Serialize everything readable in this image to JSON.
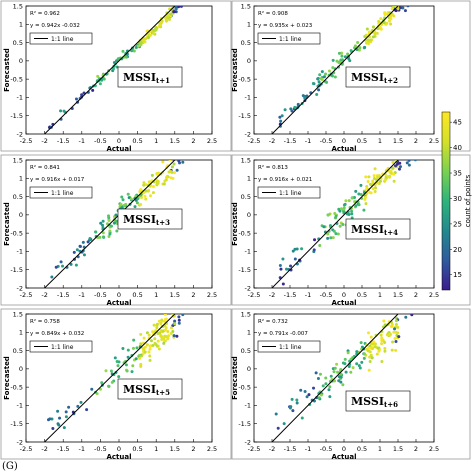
{
  "figure_label": "(G)",
  "colorbar": {
    "label": "count of points",
    "ticks": [
      15,
      20,
      25,
      30,
      35,
      40,
      45
    ],
    "range": [
      12,
      47
    ],
    "colors": [
      "#3b1c8c",
      "#2f5b9e",
      "#22898d",
      "#2fb47c",
      "#7ad151",
      "#d4e02a",
      "#fde725"
    ]
  },
  "chart_data": [
    {
      "type": "scatter",
      "panel": "t+1",
      "xlabel": "Actual",
      "ylabel": "Forecasted",
      "xlim": [
        -2.5,
        2.5
      ],
      "ylim": [
        -2,
        1.5
      ],
      "xticks": [
        -2.5,
        -2,
        -1.5,
        -1,
        -0.5,
        0,
        0.5,
        1,
        1.5,
        2,
        2.5
      ],
      "yticks": [
        -2,
        -1.5,
        -1,
        -0.5,
        0,
        0.5,
        1,
        1.5
      ],
      "r2_text": "R² = 0.962",
      "equation": "y = 0.942x  -0.032",
      "legend": "1:1 line",
      "tag_main": "MSSI",
      "tag_sub": "t+1",
      "slope": 0.942,
      "intercept": -0.032,
      "spread": 0.1
    },
    {
      "type": "scatter",
      "panel": "t+2",
      "xlabel": "Actual",
      "ylabel": "Forecasted",
      "xlim": [
        -2.5,
        2.5
      ],
      "ylim": [
        -2,
        1.5
      ],
      "xticks": [
        -2.5,
        -2,
        -1.5,
        -1,
        -0.5,
        0,
        0.5,
        1,
        1.5,
        2,
        2.5
      ],
      "yticks": [
        -2,
        -1.5,
        -1,
        -0.5,
        0,
        0.5,
        1,
        1.5
      ],
      "r2_text": "R² = 0.908",
      "equation": "y = 0.935x + 0.023",
      "legend": "1:1 line",
      "tag_main": "MSSI",
      "tag_sub": "t+2",
      "slope": 0.935,
      "intercept": 0.023,
      "spread": 0.16
    },
    {
      "type": "scatter",
      "panel": "t+3",
      "xlabel": "Actual",
      "ylabel": "Forecasted",
      "xlim": [
        -2.5,
        2.5
      ],
      "ylim": [
        -2,
        1.5
      ],
      "xticks": [
        -2.5,
        -2,
        -1.5,
        -1,
        -0.5,
        0,
        0.5,
        1,
        1.5,
        2,
        2.5
      ],
      "yticks": [
        -2,
        -1.5,
        -1,
        -0.5,
        0,
        0.5,
        1,
        1.5
      ],
      "r2_text": "R² = 0.841",
      "equation": "y = 0.916x + 0.017",
      "legend": "1:1 line",
      "tag_main": "MSSI",
      "tag_sub": "t+3",
      "slope": 0.916,
      "intercept": 0.017,
      "spread": 0.22
    },
    {
      "type": "scatter",
      "panel": "t+4",
      "xlabel": "Actual",
      "ylabel": "Forecasted",
      "xlim": [
        -2.5,
        2.5
      ],
      "ylim": [
        -2,
        1.5
      ],
      "xticks": [
        -2.5,
        -2,
        -1.5,
        -1,
        -0.5,
        0,
        0.5,
        1,
        1.5,
        2,
        2.5
      ],
      "yticks": [
        -2,
        -1.5,
        -1,
        -0.5,
        0,
        0.5,
        1,
        1.5
      ],
      "r2_text": "R² = 0.813",
      "equation": "y = 0.916x + 0.021",
      "legend": "1:1 line",
      "tag_main": "MSSI",
      "tag_sub": "t+4",
      "slope": 0.916,
      "intercept": 0.021,
      "spread": 0.25
    },
    {
      "type": "scatter",
      "panel": "t+5",
      "xlabel": "Actual",
      "ylabel": "Forecasted",
      "xlim": [
        -2.5,
        2.5
      ],
      "ylim": [
        -2,
        1.5
      ],
      "xticks": [
        -2.5,
        -2,
        -1.5,
        -1,
        -0.5,
        0,
        0.5,
        1,
        1.5,
        2,
        2.5
      ],
      "yticks": [
        -2,
        -1.5,
        -1,
        -0.5,
        0,
        0.5,
        1,
        1.5
      ],
      "r2_text": "R² = 0.758",
      "equation": "y = 0.849x + 0.032",
      "legend": "1:1 line",
      "tag_main": "MSSI",
      "tag_sub": "t+5",
      "slope": 0.849,
      "intercept": 0.032,
      "spread": 0.3
    },
    {
      "type": "scatter",
      "panel": "t+6",
      "xlabel": "Actual",
      "ylabel": "Forecasted",
      "xlim": [
        -2.5,
        2.5
      ],
      "ylim": [
        -2,
        1.5
      ],
      "xticks": [
        -2.5,
        -2,
        -1.5,
        -1,
        -0.5,
        0,
        0.5,
        1,
        1.5,
        2,
        2.5
      ],
      "yticks": [
        -2,
        -1.5,
        -1,
        -0.5,
        0,
        0.5,
        1,
        1.5
      ],
      "r2_text": "R² = 0.732",
      "equation": "y = 0.791x  -0.007",
      "legend": "1:1 line",
      "tag_main": "MSSI",
      "tag_sub": "t+6",
      "slope": 0.791,
      "intercept": -0.007,
      "spread": 0.33
    }
  ]
}
